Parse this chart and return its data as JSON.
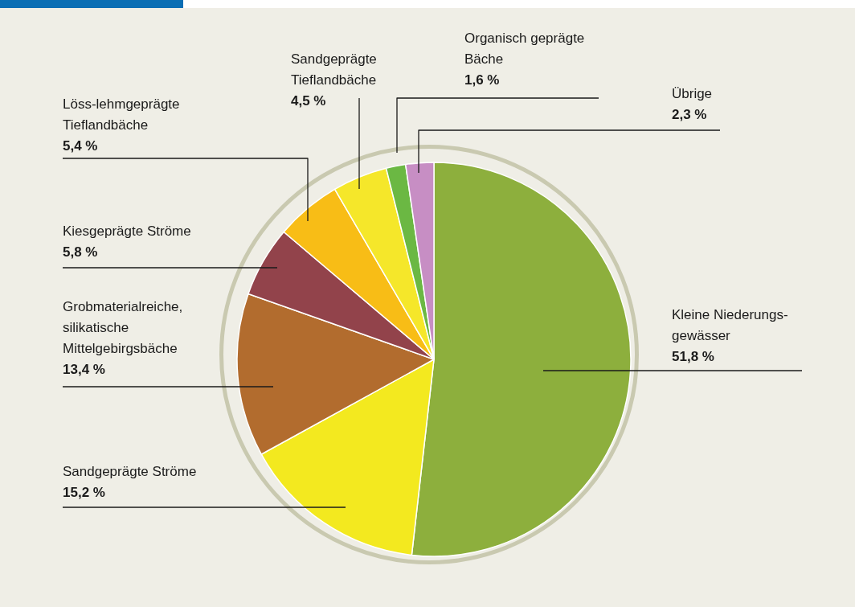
{
  "chart_data": {
    "type": "pie",
    "categories": [
      "Kleine Niederungs-\ngewässer",
      "Sandgeprägte Ströme",
      "Grobmaterialreiche,\nsilikatische\nMittelgebirgsbäche",
      "Kiesgeprägte Ströme",
      "Löss-lehmgeprägte\nTieflandbäche",
      "Sandgeprägte\nTieflandbäche",
      "Organisch geprägte\nBäche",
      "Übrige"
    ],
    "values": [
      51.8,
      15.2,
      13.4,
      5.8,
      5.4,
      4.5,
      1.6,
      2.3
    ],
    "value_labels": [
      "51,8 %",
      "15,2 %",
      "13,4 %",
      "5,8 %",
      "5,4 %",
      "4,5 %",
      "1,6 %",
      "2,3 %"
    ],
    "colors": [
      "#8daf3d",
      "#f3e91f",
      "#b26c2e",
      "#92434b",
      "#f8bd16",
      "#f5e72a",
      "#6bb843",
      "#c78ec4"
    ],
    "legend": false
  }
}
